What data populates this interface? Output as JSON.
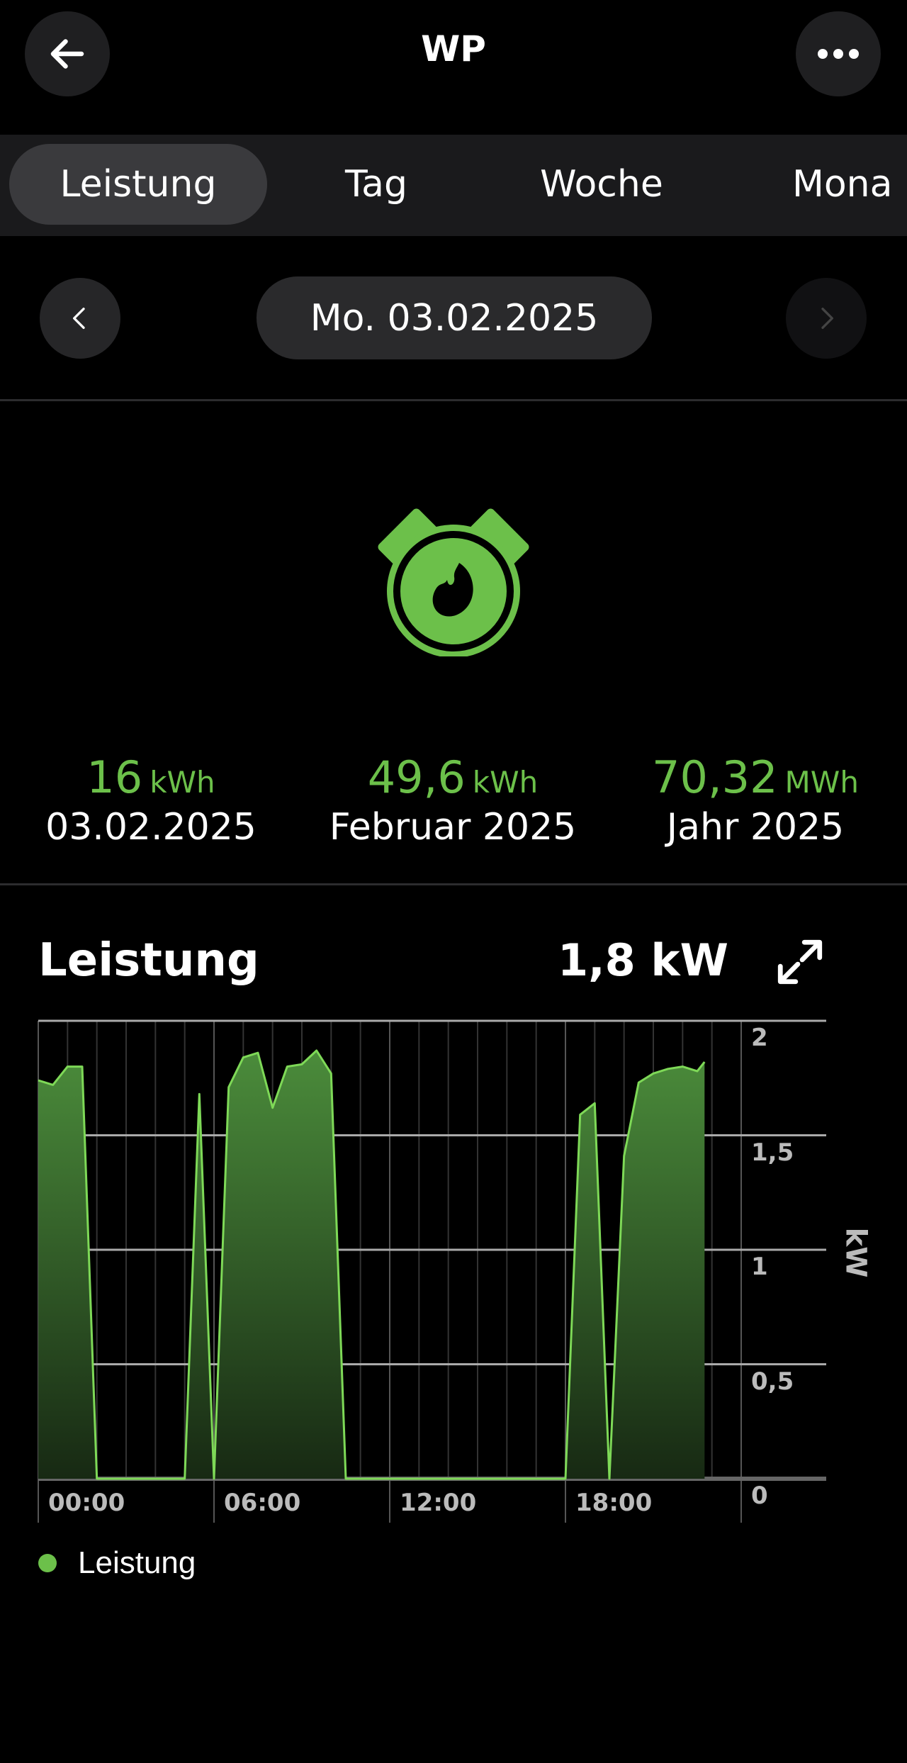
{
  "header": {
    "title": "WP",
    "back_icon": "arrow-left-icon",
    "more_icon": "ellipsis-icon"
  },
  "tabs": [
    {
      "label": "Leistung",
      "active": true
    },
    {
      "label": "Tag",
      "active": false
    },
    {
      "label": "Woche",
      "active": false
    },
    {
      "label": "Mona",
      "active": false
    }
  ],
  "date_nav": {
    "date": "Mo. 03.02.2025",
    "prev_enabled": true,
    "next_enabled": false
  },
  "device_icon": "heat-pump-flame-icon",
  "stats": [
    {
      "value": "16",
      "unit": "kWh",
      "label": "03.02.2025"
    },
    {
      "value": "49,6",
      "unit": "kWh",
      "label": "Februar 2025"
    },
    {
      "value": "70,32",
      "unit": "MWh",
      "label": "Jahr 2025"
    }
  ],
  "chart_section": {
    "title": "Leistung",
    "current_value": "1,8 kW",
    "expand_icon": "expand-icon"
  },
  "colors": {
    "accent": "#6cc04a",
    "line": "#7ed957",
    "fill_top": "#4b8c3b",
    "fill_bottom": "#172913"
  },
  "chart_data": {
    "type": "area",
    "ylabel": "kW",
    "ylim": [
      0,
      2
    ],
    "yticks": [
      "0",
      "0,5",
      "1",
      "1,5",
      "2"
    ],
    "xlim": [
      0,
      24
    ],
    "xticks": [
      "00:00",
      "06:00",
      "12:00",
      "18:00"
    ],
    "legend": {
      "position": "bottom-left",
      "entries": [
        "Leistung"
      ]
    },
    "grid": true,
    "series": [
      {
        "name": "Leistung",
        "x": [
          0,
          0.5,
          1,
          1.5,
          2,
          5,
          5.5,
          6,
          6.5,
          7,
          7.5,
          8,
          8.5,
          9,
          9.5,
          10,
          10.5,
          18,
          18.5,
          19,
          19.5,
          20,
          20.5,
          21,
          21.5,
          22,
          22.5,
          22.75
        ],
        "y": [
          1.74,
          1.72,
          1.8,
          1.8,
          0,
          0,
          1.68,
          0,
          1.71,
          1.84,
          1.86,
          1.62,
          1.8,
          1.81,
          1.87,
          1.77,
          0,
          0,
          1.59,
          1.64,
          0,
          1.41,
          1.73,
          1.77,
          1.79,
          1.8,
          1.78,
          1.82
        ]
      }
    ]
  }
}
